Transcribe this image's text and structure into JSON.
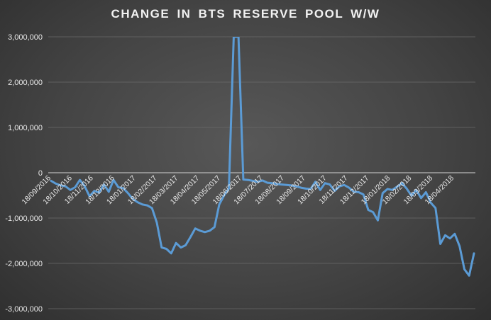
{
  "chart_data": {
    "type": "line",
    "title": "CHANGE IN BTS RESERVE POOL W/W",
    "xlabel": "",
    "ylabel": "",
    "ylim": [
      -3000000,
      3000000
    ],
    "yticks": [
      3000000,
      2000000,
      1000000,
      0,
      -1000000,
      -2000000,
      -3000000
    ],
    "ytick_labels": [
      "3,000,000",
      "2,000,000",
      "1,000,000",
      "0",
      "-1,000,000",
      "-2,000,000",
      "-3,000,000"
    ],
    "xtick_labels": [
      "18/09/2016",
      "18/10/2016",
      "18/11/2016",
      "18/12/2016",
      "18/01/2017",
      "18/02/2017",
      "18/03/2017",
      "18/04/2017",
      "18/05/2017",
      "18/06/2017",
      "18/07/2017",
      "18/08/2017",
      "18/09/2017",
      "18/10/2017",
      "18/11/2017",
      "18/12/2017",
      "18/01/2018",
      "18/02/2018",
      "18/03/2018",
      "18/04/2018"
    ],
    "grid": true,
    "legend": "none",
    "line_color": "#5b9bd5",
    "series": [
      {
        "values": [
          -180000,
          -240000,
          -280000,
          -300000,
          -380000,
          -320000,
          -160000,
          -300000,
          -520000,
          -400000,
          -440000,
          -260000,
          -420000,
          -160000,
          -320000,
          -340000,
          -450000,
          -580000,
          -650000,
          -700000,
          -720000,
          -780000,
          -1100000,
          -1650000,
          -1680000,
          -1780000,
          -1550000,
          -1650000,
          -1600000,
          -1420000,
          -1230000,
          -1280000,
          -1310000,
          -1280000,
          -1200000,
          -700000,
          -500000,
          -350000,
          3000000,
          3000000,
          -150000,
          -160000,
          -180000,
          -200000,
          -170000,
          -220000,
          -230000,
          -250000,
          -260000,
          -270000,
          -280000,
          -300000,
          -330000,
          -350000,
          -360000,
          -200000,
          -380000,
          -230000,
          -260000,
          -400000,
          -300000,
          -270000,
          -330000,
          -420000,
          -430000,
          -480000,
          -820000,
          -870000,
          -1050000,
          -450000,
          -360000,
          -380000,
          -310000,
          -230000,
          -350000,
          -510000,
          -380000,
          -560000,
          -430000,
          -660000,
          -780000,
          -1570000,
          -1380000,
          -1450000,
          -1350000,
          -1620000,
          -2130000,
          -2270000,
          -1780000
        ]
      }
    ]
  }
}
